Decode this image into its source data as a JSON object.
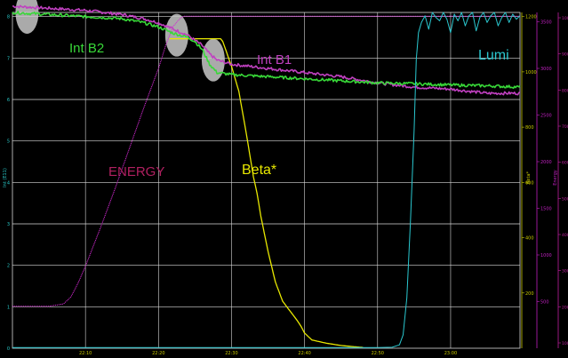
{
  "chart_data": {
    "type": "line",
    "title": "",
    "colors": {
      "background": "#000000",
      "grid": "#d8d8d8",
      "energy": "#d22ad2",
      "beta": "#e8e800",
      "int_b1": "#c040c0",
      "int_b2": "#38d838",
      "lumi": "#2ac8d0",
      "left_axis": "#28c8c8",
      "beta_axis": "#c8c800",
      "energy_axis": "#c020c0",
      "lumi_axis": "#c020a0",
      "annotation_circle": "#c8c8c8"
    },
    "x_axis": {
      "ticks": [
        "22:10",
        "22:20",
        "22:30",
        "22:40",
        "22:50",
        "23:00"
      ],
      "tick_positions_min": [
        10,
        20,
        30,
        40,
        50,
        60
      ],
      "range_min": [
        0,
        69.5
      ]
    },
    "left_axis": {
      "label": "Int (E11)",
      "ticks": [
        "0",
        "1",
        "2",
        "3",
        "4",
        "5",
        "6",
        "7",
        "8"
      ],
      "ylim": [
        0,
        8.1
      ]
    },
    "beta_axis": {
      "label": "Beta*",
      "ticks": [
        "200",
        "400",
        "600",
        "800",
        "1000",
        "1200"
      ],
      "ylim": [
        0,
        1215
      ]
    },
    "energy_axis": {
      "label": "Energy",
      "ticks": [
        "500",
        "1000",
        "1500",
        "2000",
        "2500",
        "3000",
        "3500"
      ],
      "ylim": [
        0,
        3600
      ]
    },
    "lumi_axis": {
      "ticks": [
        "1000",
        "900",
        "800",
        "700",
        "600",
        "500",
        "400",
        "300",
        "200",
        "100"
      ],
      "ylim": [
        0,
        1000
      ]
    },
    "annotations": {
      "int_b2": "Int B2",
      "int_b1": "Int B1",
      "energy": "ENERGY",
      "beta": "Beta*",
      "lumi": "Lumi"
    },
    "series": [
      {
        "name": "ENERGY",
        "axis": "energy",
        "points": [
          [
            0,
            450
          ],
          [
            2,
            450
          ],
          [
            5,
            450
          ],
          [
            7,
            475
          ],
          [
            8,
            550
          ],
          [
            9,
            700
          ],
          [
            10,
            880
          ],
          [
            12,
            1280
          ],
          [
            14,
            1700
          ],
          [
            16,
            2140
          ],
          [
            18,
            2580
          ],
          [
            20,
            3000
          ],
          [
            21,
            3250
          ],
          [
            22,
            3450
          ],
          [
            23,
            3540
          ],
          [
            23.5,
            3560
          ],
          [
            30,
            3560
          ],
          [
            45,
            3560
          ],
          [
            60,
            3560
          ],
          [
            69.5,
            3560
          ]
        ]
      },
      {
        "name": "Beta*",
        "axis": "beta",
        "points": [
          [
            21.5,
            1120
          ],
          [
            28.5,
            1120
          ],
          [
            28.8,
            1110
          ],
          [
            30,
            1020
          ],
          [
            31,
            930
          ],
          [
            32,
            780
          ],
          [
            33,
            620
          ],
          [
            33.5,
            560
          ],
          [
            34,
            480
          ],
          [
            35,
            350
          ],
          [
            36,
            240
          ],
          [
            37,
            170
          ],
          [
            38,
            135
          ],
          [
            39,
            100
          ],
          [
            39.5,
            80
          ],
          [
            40,
            55
          ],
          [
            41,
            30
          ],
          [
            43,
            18
          ],
          [
            45,
            10
          ],
          [
            47,
            5
          ],
          [
            48,
            3
          ]
        ]
      },
      {
        "name": "Int B1",
        "axis": "left",
        "points": [
          [
            0,
            8.25
          ],
          [
            5,
            8.2
          ],
          [
            10,
            8.15
          ],
          [
            15,
            8.05
          ],
          [
            18,
            7.95
          ],
          [
            20,
            7.85
          ],
          [
            22,
            7.7
          ],
          [
            24,
            7.55
          ],
          [
            26,
            7.3
          ],
          [
            27,
            7.1
          ],
          [
            28,
            6.95
          ],
          [
            30,
            6.85
          ],
          [
            35,
            6.75
          ],
          [
            40,
            6.65
          ],
          [
            45,
            6.55
          ],
          [
            50,
            6.4
          ],
          [
            55,
            6.3
          ],
          [
            60,
            6.25
          ],
          [
            65,
            6.15
          ],
          [
            69.5,
            6.15
          ]
        ]
      },
      {
        "name": "Int B2",
        "axis": "left",
        "points": [
          [
            0,
            8.1
          ],
          [
            5,
            8.05
          ],
          [
            10,
            8.0
          ],
          [
            15,
            7.95
          ],
          [
            18,
            7.85
          ],
          [
            20,
            7.75
          ],
          [
            22,
            7.6
          ],
          [
            24,
            7.5
          ],
          [
            25,
            7.4
          ],
          [
            26,
            7.2
          ],
          [
            27,
            6.85
          ],
          [
            28,
            6.65
          ],
          [
            30,
            6.6
          ],
          [
            35,
            6.55
          ],
          [
            40,
            6.5
          ],
          [
            45,
            6.45
          ],
          [
            50,
            6.4
          ],
          [
            55,
            6.38
          ],
          [
            60,
            6.35
          ],
          [
            65,
            6.33
          ],
          [
            69.5,
            6.3
          ]
        ]
      },
      {
        "name": "Lumi",
        "axis": "lumi",
        "points": [
          [
            0,
            2
          ],
          [
            20,
            2
          ],
          [
            40,
            2
          ],
          [
            50,
            2
          ],
          [
            52,
            3
          ],
          [
            53,
            10
          ],
          [
            53.5,
            40
          ],
          [
            54,
            150
          ],
          [
            54.5,
            380
          ],
          [
            55,
            650
          ],
          [
            55.3,
            860
          ],
          [
            55.6,
            940
          ],
          [
            56,
            970
          ],
          [
            56.5,
            990
          ],
          [
            57,
            950
          ],
          [
            57.5,
            1000
          ],
          [
            58,
            985
          ],
          [
            58.5,
            975
          ],
          [
            59,
            1000
          ],
          [
            59.5,
            980
          ],
          [
            60,
            940
          ],
          [
            60.5,
            995
          ],
          [
            61,
            975
          ],
          [
            61.5,
            1000
          ],
          [
            62,
            960
          ],
          [
            62.5,
            990
          ],
          [
            63,
            1000
          ],
          [
            63.5,
            945
          ],
          [
            64,
            985
          ],
          [
            64.5,
            1000
          ],
          [
            65,
            970
          ],
          [
            65.5,
            990
          ],
          [
            66,
            1000
          ],
          [
            66.5,
            960
          ],
          [
            67,
            985
          ],
          [
            67.5,
            1000
          ],
          [
            68,
            970
          ],
          [
            68.5,
            995
          ],
          [
            69,
            980
          ],
          [
            69.5,
            990
          ]
        ]
      }
    ],
    "circles": [
      {
        "name": "circle-int-b2-start",
        "x_min": 2,
        "y_left": 8.1
      },
      {
        "name": "circle-int-b2-ramp",
        "x_min": 22.5,
        "y_left": 7.55
      },
      {
        "name": "circle-int-b1-squeeze",
        "x_min": 27.5,
        "y_left": 6.95
      }
    ]
  }
}
